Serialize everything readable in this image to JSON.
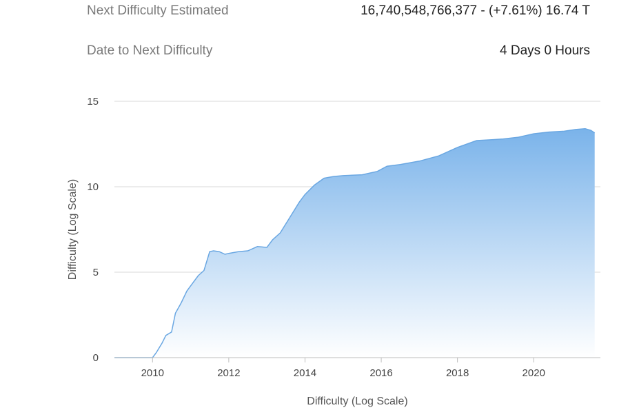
{
  "info": {
    "next_difficulty_label": "Next Difficulty Estimated",
    "next_difficulty_value": "16,740,548,766,377 - (+7.61%) 16.74 T",
    "date_next_label": "Date to Next Difficulty",
    "date_next_value": "4 Days 0 Hours"
  },
  "chart_data": {
    "type": "area",
    "title": "",
    "xlabel": "Difficulty (Log Scale)",
    "ylabel": "Difficulty (Log Scale)",
    "xlim": [
      2009.0,
      2021.75
    ],
    "ylim": [
      0,
      15
    ],
    "xticks": [
      2010,
      2012,
      2014,
      2016,
      2018,
      2020
    ],
    "yticks": [
      0,
      5,
      10,
      15
    ],
    "grid": true,
    "legend": "none",
    "colors": {
      "line": "#6aa7e2",
      "fill_top": "#7ab3ea",
      "fill_bottom": "#ffffff",
      "grid": "#d9d9d9",
      "axis": "#bdbdbd"
    },
    "series": [
      {
        "x": [
          2009.0,
          2009.5,
          2010.0,
          2010.1,
          2010.25,
          2010.35,
          2010.5,
          2010.6,
          2010.75,
          2010.9,
          2011.0,
          2011.2,
          2011.35,
          2011.5,
          2011.6,
          2011.75,
          2011.9,
          2012.0,
          2012.25,
          2012.5,
          2012.75,
          2013.0,
          2013.15,
          2013.35,
          2013.6,
          2013.85,
          2014.0,
          2014.25,
          2014.5,
          2014.75,
          2015.0,
          2015.5,
          2015.9,
          2016.15,
          2016.5,
          2017.0,
          2017.5,
          2018.0,
          2018.5,
          2018.9,
          2019.2,
          2019.6,
          2020.0,
          2020.4,
          2020.8,
          2021.1,
          2021.35,
          2021.5,
          2021.6
        ],
        "y": [
          0,
          0,
          0,
          0.3,
          0.85,
          1.3,
          1.5,
          2.6,
          3.2,
          3.9,
          4.2,
          4.8,
          5.1,
          6.2,
          6.25,
          6.2,
          6.05,
          6.1,
          6.2,
          6.25,
          6.5,
          6.45,
          6.9,
          7.3,
          8.2,
          9.1,
          9.55,
          10.1,
          10.5,
          10.6,
          10.65,
          10.7,
          10.9,
          11.2,
          11.3,
          11.5,
          11.8,
          12.3,
          12.7,
          12.75,
          12.8,
          12.9,
          13.1,
          13.2,
          13.25,
          13.35,
          13.4,
          13.3,
          13.15
        ]
      }
    ]
  }
}
